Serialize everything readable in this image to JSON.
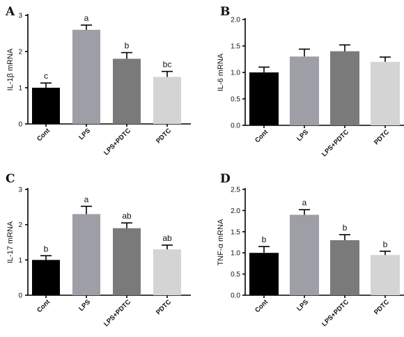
{
  "chart_data": [
    {
      "type": "bar",
      "panel": "A",
      "ylabel": "IL-1β mRNA",
      "ylim": [
        0,
        3
      ],
      "yticks": [
        "0",
        "1",
        "2",
        "3"
      ],
      "categories": [
        "Cont",
        "LPS",
        "LPS+PDTC",
        "PDTC"
      ],
      "values": [
        1.0,
        2.6,
        1.8,
        1.3
      ],
      "errors": [
        0.13,
        0.13,
        0.17,
        0.15
      ],
      "labels": [
        "c",
        "a",
        "b",
        "bc"
      ],
      "colors": [
        "#000000",
        "#9e9ea6",
        "#7a7a7a",
        "#d4d4d4"
      ]
    },
    {
      "type": "bar",
      "panel": "B",
      "ylabel": "IL-6 mRNA",
      "ylim": [
        0,
        2
      ],
      "yticks": [
        "0.0",
        "0.5",
        "1.0",
        "1.5",
        "2.0"
      ],
      "categories": [
        "Cont",
        "LPS",
        "LPS+PDTC",
        "PDTC"
      ],
      "values": [
        1.0,
        1.3,
        1.4,
        1.2
      ],
      "errors": [
        0.1,
        0.14,
        0.12,
        0.09
      ],
      "labels": [
        "",
        "",
        "",
        ""
      ],
      "colors": [
        "#000000",
        "#9e9ea6",
        "#7a7a7a",
        "#d4d4d4"
      ]
    },
    {
      "type": "bar",
      "panel": "C",
      "ylabel": "IL-17 mRNA",
      "ylim": [
        0,
        3
      ],
      "yticks": [
        "0",
        "1",
        "2",
        "3"
      ],
      "categories": [
        "Cont",
        "LPS",
        "LPS+PDTC",
        "PDTC"
      ],
      "values": [
        1.0,
        2.3,
        1.9,
        1.3
      ],
      "errors": [
        0.12,
        0.22,
        0.15,
        0.12
      ],
      "labels": [
        "b",
        "a",
        "ab",
        "ab"
      ],
      "colors": [
        "#000000",
        "#9e9ea6",
        "#7a7a7a",
        "#d4d4d4"
      ]
    },
    {
      "type": "bar",
      "panel": "D",
      "ylabel": "TNF-α mRNA",
      "ylim": [
        0,
        2.5
      ],
      "yticks": [
        "0.0",
        "0.5",
        "1.0",
        "1.5",
        "2.0",
        "2.5"
      ],
      "categories": [
        "Cont",
        "LPS",
        "LPS+PDTC",
        "PDTC"
      ],
      "values": [
        1.0,
        1.9,
        1.3,
        0.95
      ],
      "errors": [
        0.15,
        0.12,
        0.13,
        0.09
      ],
      "labels": [
        "b",
        "a",
        "b",
        "b"
      ],
      "colors": [
        "#000000",
        "#9e9ea6",
        "#7a7a7a",
        "#d4d4d4"
      ]
    }
  ]
}
